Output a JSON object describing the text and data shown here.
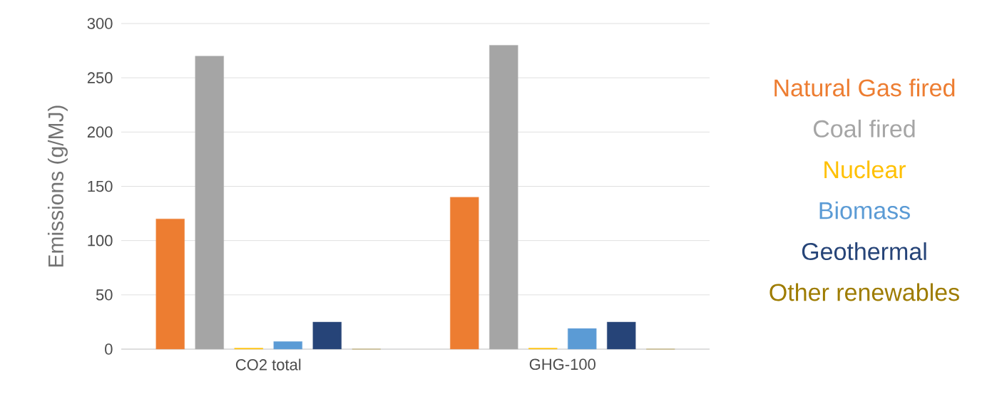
{
  "chart_data": {
    "type": "bar",
    "ylabel": "Emissions (g/MJ)",
    "categories": [
      "CO2 total",
      "GHG-100"
    ],
    "series": [
      {
        "name": "Natural Gas fired",
        "color": "#ed7d31",
        "values": [
          120,
          140
        ]
      },
      {
        "name": "Coal fired",
        "color": "#a5a5a5",
        "values": [
          270,
          280
        ]
      },
      {
        "name": "Nuclear",
        "color": "#ffc000",
        "values": [
          1,
          1
        ]
      },
      {
        "name": "Biomass",
        "color": "#5b9bd5",
        "values": [
          7,
          19
        ]
      },
      {
        "name": "Geothermal",
        "color": "#264478",
        "values": [
          25,
          25
        ]
      },
      {
        "name": "Other renewables",
        "color": "#9e7c00",
        "values": [
          0,
          0
        ]
      }
    ],
    "ylim": [
      0,
      300
    ],
    "yticks": [
      0,
      50,
      100,
      150,
      200,
      250,
      300
    ],
    "grid": "y",
    "legend": "right"
  }
}
